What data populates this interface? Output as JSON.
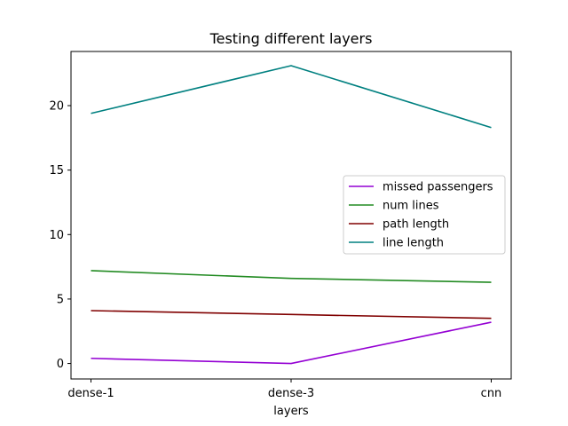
{
  "chart_data": {
    "type": "line",
    "title": "Testing different layers",
    "xlabel": "layers",
    "ylabel": "",
    "categories": [
      "dense-1",
      "dense-3",
      "cnn"
    ],
    "ylim": [
      -1.2,
      24.2
    ],
    "yticks": [
      0,
      5,
      10,
      15,
      20
    ],
    "grid": false,
    "legend_position": "center-right",
    "series": [
      {
        "name": "missed passengers",
        "color": "#9400d3",
        "values": [
          0.4,
          0.0,
          3.2
        ]
      },
      {
        "name": "num lines",
        "color": "#228b22",
        "values": [
          7.2,
          6.6,
          6.3
        ]
      },
      {
        "name": "path length",
        "color": "#800000",
        "values": [
          4.1,
          3.8,
          3.5
        ]
      },
      {
        "name": "line length",
        "color": "#008080",
        "values": [
          19.4,
          23.1,
          18.3
        ]
      }
    ]
  }
}
